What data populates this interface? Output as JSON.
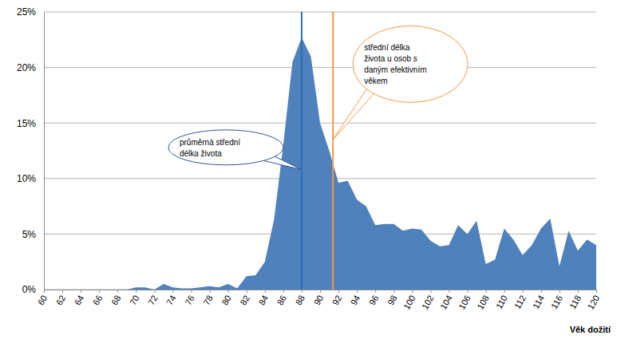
{
  "chart_data": {
    "type": "area",
    "x_label": "Věk dožití",
    "x": [
      60,
      61,
      62,
      63,
      64,
      65,
      66,
      67,
      68,
      69,
      70,
      71,
      72,
      73,
      74,
      75,
      76,
      77,
      78,
      79,
      80,
      81,
      82,
      83,
      84,
      85,
      86,
      87,
      88,
      89,
      90,
      91,
      92,
      93,
      94,
      95,
      96,
      97,
      98,
      99,
      100,
      101,
      102,
      103,
      104,
      105,
      106,
      107,
      108,
      109,
      110,
      111,
      112,
      113,
      114,
      115,
      116,
      117,
      118,
      119,
      120
    ],
    "values": [
      0,
      0,
      0,
      0,
      0,
      0,
      0,
      0,
      0,
      0,
      0.2,
      0.2,
      0,
      0.5,
      0.2,
      0.1,
      0.1,
      0.2,
      0.3,
      0.2,
      0.5,
      0.1,
      1.2,
      1.3,
      2.5,
      6.3,
      13,
      20.5,
      22.7,
      21,
      15,
      12.5,
      9.6,
      9.8,
      8.1,
      7.5,
      5.8,
      5.9,
      5.9,
      5.3,
      5.5,
      5.4,
      4.4,
      3.9,
      4.0,
      5.8,
      5.0,
      6.2,
      2.3,
      2.7,
      5.5,
      4.5,
      3.1,
      4.0,
      5.5,
      6.4,
      2.1,
      5.3,
      3.5,
      4.5,
      4.0
    ],
    "color": "#4f81bd",
    "xlim": [
      60,
      120
    ],
    "xticks": [
      60,
      62,
      64,
      66,
      68,
      70,
      72,
      74,
      76,
      78,
      80,
      82,
      84,
      86,
      88,
      90,
      92,
      94,
      96,
      98,
      100,
      102,
      104,
      106,
      108,
      110,
      112,
      114,
      116,
      118,
      120
    ],
    "ylim": [
      0,
      25
    ],
    "yticks": [
      {
        "value": 0,
        "label": "0%"
      },
      {
        "value": 5,
        "label": "5%"
      },
      {
        "value": 10,
        "label": "10%"
      },
      {
        "value": 15,
        "label": "15%"
      },
      {
        "value": 20,
        "label": "20%"
      },
      {
        "value": 25,
        "label": "25%"
      }
    ],
    "grid": true,
    "annotations": [
      {
        "text": [
          "průměrná střední",
          "délka života"
        ],
        "x": 88,
        "color": "#2e6db4"
      },
      {
        "text": [
          "střední délka",
          "života u osob s",
          "daným efektivním",
          "věkem"
        ],
        "x": 91.4,
        "color": "#f79646"
      }
    ]
  }
}
